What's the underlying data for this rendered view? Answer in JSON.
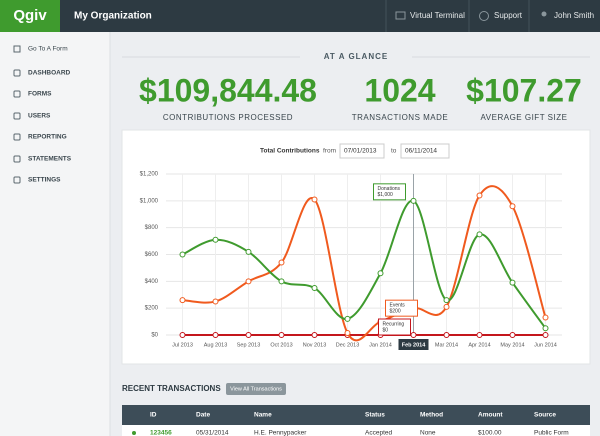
{
  "header": {
    "logo": "Qgiv",
    "organization": "My Organization",
    "nav": [
      "Virtual Terminal",
      "Support",
      "John Smith"
    ]
  },
  "sidebar": {
    "items": [
      "Go To A Form",
      "DASHBOARD",
      "FORMS",
      "USERS",
      "REPORTING",
      "STATEMENTS",
      "SETTINGS"
    ]
  },
  "overview": {
    "title": "AT A GLANCE",
    "stats": [
      {
        "value": "$109,844.48",
        "label": "CONTRIBUTIONS PROCESSED"
      },
      {
        "value": "1024",
        "label": "TRANSACTIONS MADE"
      },
      {
        "value": "$107.27",
        "label": "AVERAGE GIFT SIZE"
      }
    ]
  },
  "chart_filter": {
    "from": "from",
    "start": "07/01/2013",
    "to": "to",
    "end": "06/11/2014"
  },
  "chart_data": {
    "type": "line",
    "title": "Total Contributions",
    "categories": [
      "Jul 2013",
      "Aug 2013",
      "Sep 2013",
      "Oct 2013",
      "Nov 2013",
      "Dec 2013",
      "Jan 2014",
      "Feb 2014",
      "Mar 2014",
      "Apr 2014",
      "May 2014",
      "Jun 2014"
    ],
    "series": [
      {
        "name": "Donations",
        "color": "#3f9b2e",
        "values": [
          600,
          710,
          620,
          400,
          350,
          120,
          460,
          1000,
          260,
          750,
          390,
          50
        ],
        "value_labels": [
          null,
          null,
          null,
          null,
          null,
          null,
          null,
          "$1,000",
          null,
          null,
          null,
          null
        ]
      },
      {
        "name": "Events",
        "color": "#f05a1e",
        "values": [
          260,
          250,
          400,
          540,
          1010,
          15,
          100,
          200,
          210,
          1040,
          960,
          130
        ],
        "value_labels": [
          null,
          null,
          null,
          null,
          null,
          null,
          null,
          "$200",
          null,
          null,
          null,
          null
        ]
      },
      {
        "name": "Recurring",
        "color": "#c4161c",
        "values": [
          0,
          0,
          0,
          0,
          0,
          0,
          0,
          0,
          0,
          0,
          0,
          0
        ],
        "value_labels": [
          null,
          null,
          null,
          null,
          null,
          null,
          null,
          "$0",
          null,
          null,
          null,
          null
        ]
      }
    ],
    "ylim": [
      0,
      1200
    ],
    "yticks": [
      {
        "value": 0,
        "label": "$0"
      },
      {
        "value": 200,
        "label": "$200"
      },
      {
        "value": 400,
        "label": "$400"
      },
      {
        "value": 600,
        "label": "$600"
      },
      {
        "value": 800,
        "label": "$800"
      },
      {
        "value": 1000,
        "label": "$1,000"
      },
      {
        "value": 1200,
        "label": "$1,200"
      }
    ],
    "grid": true
  },
  "transactions": {
    "title": "RECENT TRANSACTIONS",
    "button": "View All Transactions",
    "columns": [
      "ID",
      "Date",
      "Name",
      "Status",
      "Method",
      "Amount",
      "Source"
    ],
    "rows": [
      [
        "123456",
        "05/31/2014",
        "H.E. Pennypacker",
        "Accepted",
        "None",
        "$100.00",
        "Public Form"
      ]
    ]
  }
}
